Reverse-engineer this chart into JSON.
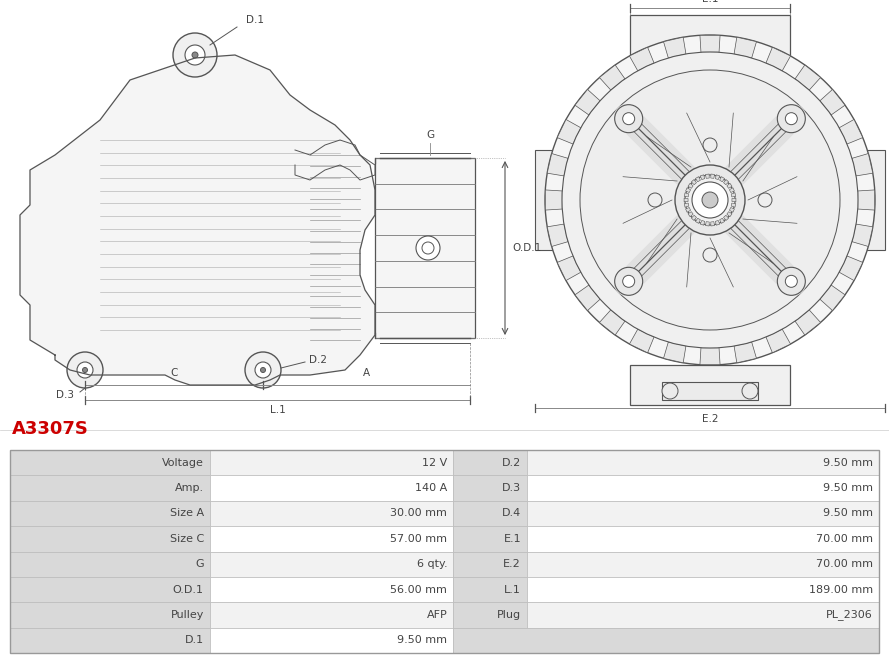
{
  "title": "A3307S",
  "title_color": "#cc0000",
  "bg_color": "#ffffff",
  "table_rows": [
    [
      "Voltage",
      "12 V",
      "D.2",
      "9.50 mm"
    ],
    [
      "Amp.",
      "140 A",
      "D.3",
      "9.50 mm"
    ],
    [
      "Size A",
      "30.00 mm",
      "D.4",
      "9.50 mm"
    ],
    [
      "Size C",
      "57.00 mm",
      "E.1",
      "70.00 mm"
    ],
    [
      "G",
      "6 qty.",
      "E.2",
      "70.00 mm"
    ],
    [
      "O.D.1",
      "56.00 mm",
      "L.1",
      "189.00 mm"
    ],
    [
      "Pulley",
      "AFP",
      "Plug",
      "PL_2306"
    ],
    [
      "D.1",
      "9.50 mm",
      "",
      ""
    ]
  ],
  "lc": "#555555",
  "lc2": "#888888",
  "header_bg": "#d9d9d9",
  "row_bg_even": "#f2f2f2",
  "row_bg_odd": "#ffffff",
  "border_color": "#bbbbbb",
  "text_color": "#444444"
}
